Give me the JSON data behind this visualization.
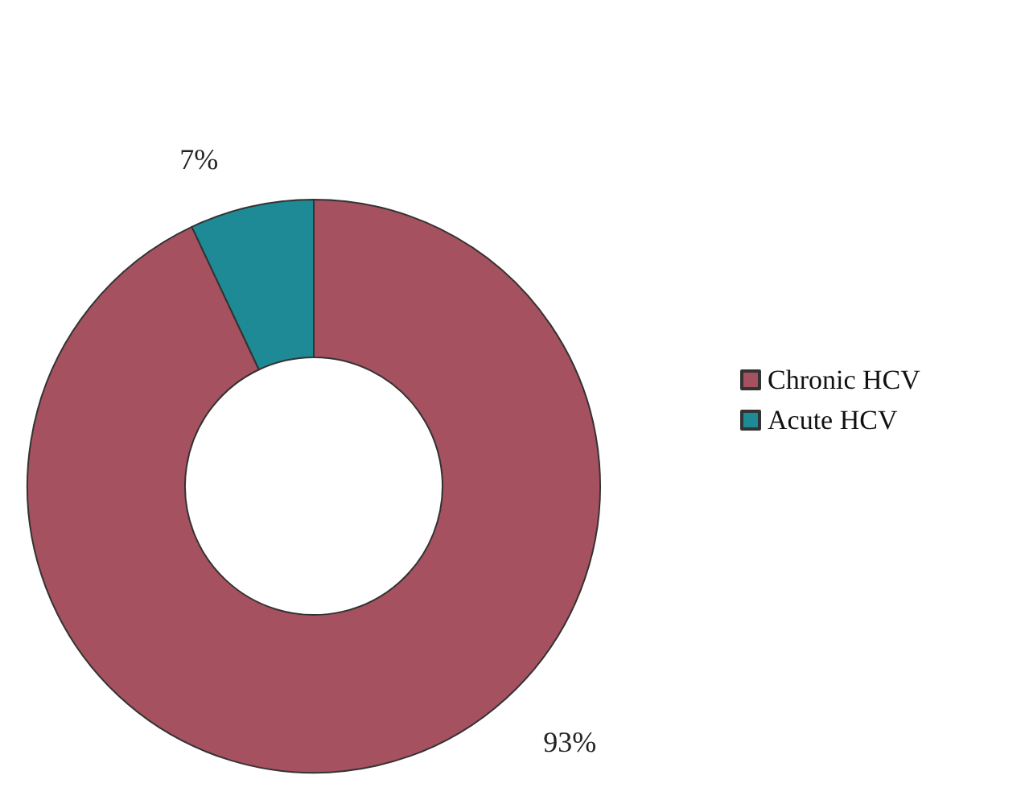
{
  "chart_data": {
    "type": "donut",
    "categories": [
      "Chronic HCV",
      "Acute HCV"
    ],
    "values": [
      93,
      7
    ],
    "colors": [
      "#a6515f",
      "#1e8a96"
    ],
    "value_labels": [
      "93%",
      "7%"
    ],
    "legend": "right"
  }
}
